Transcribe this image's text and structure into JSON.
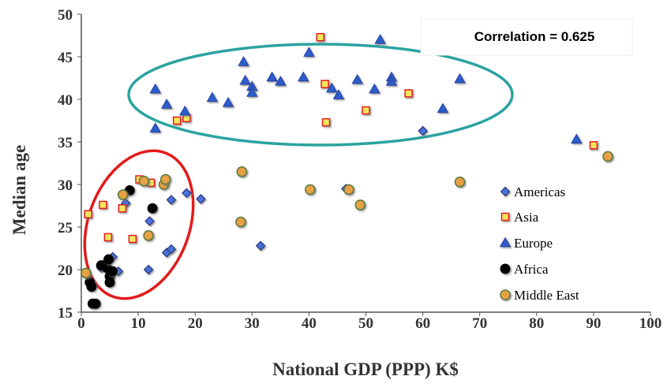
{
  "chart_data": {
    "type": "scatter",
    "title": "",
    "xlabel": "National GDP (PPP) K$",
    "ylabel": "Median  age",
    "xlim": [
      0,
      100
    ],
    "ylim": [
      15,
      50
    ],
    "xticks": [
      "0",
      "10",
      "20",
      "30",
      "40",
      "50",
      "60",
      "70",
      "80",
      "90",
      "100"
    ],
    "yticks": [
      "15",
      "20",
      "25",
      "30",
      "35",
      "40",
      "45",
      "50"
    ],
    "grid": "none",
    "legend_placement": "bottom-right",
    "annotation": "Correlation = 0.625",
    "series": [
      {
        "name": "Americas",
        "marker": "diamond",
        "color": "#4A6FD9",
        "points": [
          [
            3.5,
            20.2
          ],
          [
            4.5,
            21.0
          ],
          [
            5.5,
            21.5
          ],
          [
            6.5,
            19.8
          ],
          [
            7.8,
            27.8
          ],
          [
            11.8,
            20.0
          ],
          [
            12.0,
            25.7
          ],
          [
            15.0,
            22.0
          ],
          [
            15.8,
            22.4
          ],
          [
            15.8,
            28.2
          ],
          [
            18.5,
            29.0
          ],
          [
            21.0,
            28.3
          ],
          [
            31.5,
            22.8
          ],
          [
            46.5,
            29.5
          ],
          [
            60.0,
            36.3
          ]
        ]
      },
      {
        "name": "Asia",
        "marker": "square",
        "color": "#F5E55C",
        "points": [
          [
            1.2,
            26.5
          ],
          [
            3.8,
            27.6
          ],
          [
            4.7,
            23.8
          ],
          [
            7.2,
            27.2
          ],
          [
            9.0,
            23.6
          ],
          [
            10.2,
            30.6
          ],
          [
            12.2,
            30.2
          ],
          [
            16.8,
            37.5
          ],
          [
            18.5,
            37.8
          ],
          [
            42.0,
            47.3
          ],
          [
            42.8,
            41.8
          ],
          [
            43.0,
            37.3
          ],
          [
            50.0,
            38.7
          ],
          [
            57.5,
            40.7
          ],
          [
            90.0,
            34.6
          ]
        ]
      },
      {
        "name": "Europe",
        "marker": "triangle",
        "color": "#2E5CC9",
        "points": [
          [
            13.0,
            41.2
          ],
          [
            13.0,
            36.6
          ],
          [
            15.0,
            39.4
          ],
          [
            18.2,
            38.6
          ],
          [
            23.0,
            40.2
          ],
          [
            25.8,
            39.6
          ],
          [
            28.5,
            44.4
          ],
          [
            28.8,
            42.2
          ],
          [
            30.0,
            41.5
          ],
          [
            30.0,
            40.8
          ],
          [
            33.5,
            42.6
          ],
          [
            35.0,
            42.1
          ],
          [
            39.0,
            42.6
          ],
          [
            40.0,
            45.5
          ],
          [
            44.0,
            41.3
          ],
          [
            45.2,
            40.5
          ],
          [
            48.5,
            42.3
          ],
          [
            51.5,
            41.2
          ],
          [
            52.5,
            47.0
          ],
          [
            54.5,
            42.6
          ],
          [
            54.5,
            42.1
          ],
          [
            63.5,
            38.9
          ],
          [
            66.5,
            42.4
          ],
          [
            87.0,
            35.3
          ]
        ]
      },
      {
        "name": "Africa",
        "marker": "circle",
        "color": "#000000",
        "points": [
          [
            1.5,
            18.5
          ],
          [
            1.8,
            18.0
          ],
          [
            2.0,
            16.0
          ],
          [
            2.5,
            16.0
          ],
          [
            3.5,
            20.5
          ],
          [
            4.5,
            20.2
          ],
          [
            4.8,
            21.2
          ],
          [
            5.0,
            19.2
          ],
          [
            5.0,
            18.5
          ],
          [
            5.5,
            19.8
          ],
          [
            8.5,
            29.3
          ],
          [
            12.5,
            27.2
          ]
        ]
      },
      {
        "name": "Middle East",
        "marker": "circle",
        "color": "#E8A045",
        "points": [
          [
            0.8,
            19.6
          ],
          [
            7.3,
            28.8
          ],
          [
            11.0,
            30.4
          ],
          [
            11.8,
            24.0
          ],
          [
            14.5,
            30.0
          ],
          [
            14.8,
            30.6
          ],
          [
            28.0,
            25.6
          ],
          [
            28.2,
            31.5
          ],
          [
            40.2,
            29.4
          ],
          [
            47.0,
            29.4
          ],
          [
            49.0,
            27.6
          ],
          [
            66.5,
            30.3
          ],
          [
            92.5,
            33.3
          ]
        ]
      }
    ]
  }
}
